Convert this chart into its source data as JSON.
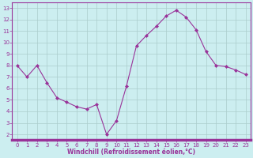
{
  "x": [
    0,
    1,
    2,
    3,
    4,
    5,
    6,
    7,
    8,
    9,
    10,
    11,
    12,
    13,
    14,
    15,
    16,
    17,
    18,
    19,
    20,
    21,
    22,
    23
  ],
  "y": [
    8.0,
    7.0,
    8.0,
    6.5,
    5.2,
    4.8,
    4.4,
    4.2,
    4.6,
    2.0,
    3.2,
    6.2,
    9.7,
    10.6,
    11.4,
    12.3,
    12.8,
    12.2,
    11.1,
    9.2,
    8.0,
    7.9,
    7.6,
    7.2
  ],
  "line_color": "#993399",
  "marker": "D",
  "markersize": 2,
  "linewidth": 0.8,
  "bg_color": "#cceef0",
  "grid_color": "#aacccc",
  "xlabel": "Windchill (Refroidissement éolien,°C)",
  "xlabel_color": "#993399",
  "tick_color": "#993399",
  "axis_color": "#993399",
  "ylim": [
    1.5,
    13.5
  ],
  "xlim": [
    -0.5,
    23.5
  ],
  "yticks": [
    2,
    3,
    4,
    5,
    6,
    7,
    8,
    9,
    10,
    11,
    12,
    13
  ],
  "xticks": [
    0,
    1,
    2,
    3,
    4,
    5,
    6,
    7,
    8,
    9,
    10,
    11,
    12,
    13,
    14,
    15,
    16,
    17,
    18,
    19,
    20,
    21,
    22,
    23
  ],
  "tick_fontsize": 5.0,
  "xlabel_fontsize": 5.5
}
